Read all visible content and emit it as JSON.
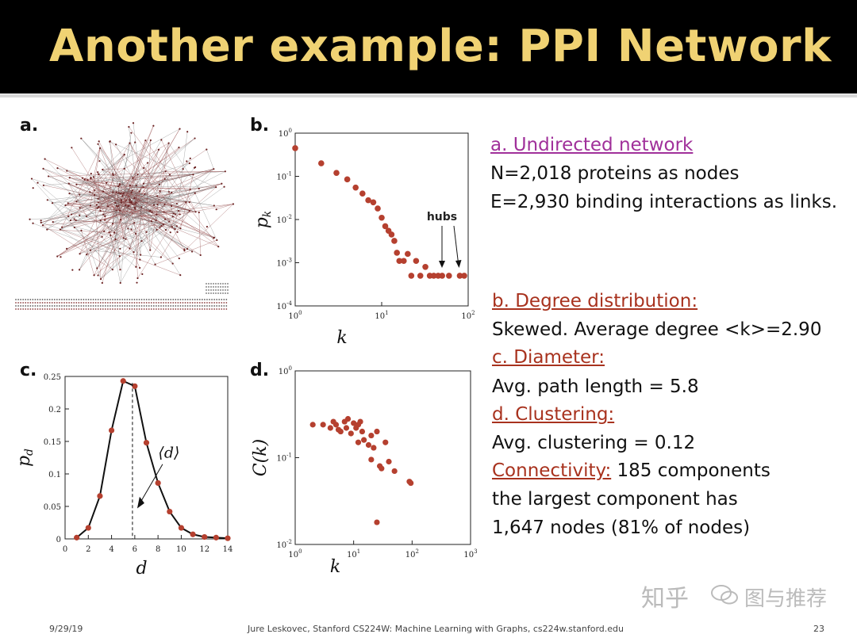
{
  "slide": {
    "title": "Another example: PPI Network",
    "footer_date": "9/29/19",
    "footer_credit": "Jure Leskovec, Stanford CS224W: Machine Learning with Graphs, cs224w.stanford.edu",
    "footer_page": "23",
    "watermark_left": "知乎",
    "watermark_right": "图与推荐"
  },
  "panels": {
    "a": {
      "letter": "a."
    },
    "b": {
      "letter": "b.",
      "annotation": "hubs"
    },
    "c": {
      "letter": "c."
    },
    "d": {
      "letter": "d."
    }
  },
  "text": {
    "a_header": "a. Undirected network",
    "a_line1": "N=2,018 proteins as nodes",
    "a_line2": "E=2,930 binding interactions as links.",
    "b_header": "b. Degree distribution:",
    "b_line1": "Skewed. Average degree  <k>=2.90",
    "c_header": "c. Diameter:",
    "c_line1": "Avg. path length = 5.8",
    "d_header": "d. Clustering:",
    "d_line1": "Avg. clustering = 0.12",
    "conn_header": "Connectivity:",
    "conn_line1": " 185 components",
    "conn_line2": " the largest component has",
    "conn_line3": "1,647 nodes (81% of nodes)"
  },
  "colors": {
    "accent_purple": "#a0309a",
    "accent_red": "#a8321e",
    "title_gold": "#f0d273",
    "marker": "#b5402f"
  },
  "chart_data": [
    {
      "id": "b",
      "type": "scatter",
      "xlabel": "k",
      "ylabel": "p_k",
      "xscale": "log",
      "yscale": "log",
      "xlim": [
        1,
        100
      ],
      "ylim": [
        0.0001,
        1
      ],
      "xticks": [
        "10^0",
        "10^1",
        "10^2"
      ],
      "yticks": [
        "10^-4",
        "10^-3",
        "10^-2",
        "10^-1",
        "10^0"
      ],
      "x": [
        1,
        2,
        3,
        4,
        5,
        6,
        7,
        8,
        9,
        10,
        11,
        12,
        13,
        14,
        15,
        16,
        18,
        20,
        22,
        25,
        28,
        32,
        36,
        40,
        45,
        50,
        60,
        80,
        90
      ],
      "y": [
        0.45,
        0.2,
        0.12,
        0.085,
        0.055,
        0.04,
        0.028,
        0.025,
        0.018,
        0.011,
        0.007,
        0.0055,
        0.0045,
        0.0032,
        0.0017,
        0.0011,
        0.0011,
        0.0016,
        0.0005,
        0.0011,
        0.0005,
        0.0008,
        0.0005,
        0.0005,
        0.0005,
        0.0005,
        0.0005,
        0.0005,
        0.0005
      ]
    },
    {
      "id": "c",
      "type": "line",
      "xlabel": "d",
      "ylabel": "p_d",
      "xlim": [
        0,
        14
      ],
      "ylim": [
        0,
        0.25
      ],
      "xticks": [
        0,
        2,
        4,
        6,
        8,
        10,
        12,
        14
      ],
      "yticks": [
        0,
        0.05,
        0.1,
        0.15,
        0.2,
        0.25
      ],
      "x": [
        1,
        2,
        3,
        4,
        5,
        6,
        7,
        8,
        9,
        10,
        11,
        12,
        13,
        14
      ],
      "values": [
        0.002,
        0.017,
        0.066,
        0.167,
        0.243,
        0.235,
        0.148,
        0.086,
        0.042,
        0.017,
        0.007,
        0.003,
        0.002,
        0.001
      ],
      "mean_marker": 5.8,
      "mean_label": "⟨d⟩"
    },
    {
      "id": "d",
      "type": "scatter",
      "xlabel": "k",
      "ylabel": "C(k)",
      "xscale": "log",
      "yscale": "log",
      "xlim": [
        1,
        1000
      ],
      "ylim": [
        0.01,
        1
      ],
      "xticks": [
        "10^0",
        "10^1",
        "10^2",
        "10^3"
      ],
      "yticks": [
        "10^-2",
        "10^-1",
        "10^0"
      ],
      "x": [
        2,
        3,
        4,
        4.5,
        5,
        5.5,
        6,
        7,
        7.5,
        8,
        9,
        10,
        11,
        12,
        13,
        14,
        12,
        15,
        18,
        20,
        22,
        25,
        20,
        28,
        30,
        35,
        40,
        50,
        90,
        95,
        25
      ],
      "y": [
        0.24,
        0.24,
        0.22,
        0.26,
        0.24,
        0.21,
        0.2,
        0.26,
        0.22,
        0.28,
        0.19,
        0.25,
        0.22,
        0.24,
        0.26,
        0.2,
        0.15,
        0.16,
        0.14,
        0.18,
        0.13,
        0.2,
        0.095,
        0.08,
        0.075,
        0.15,
        0.09,
        0.07,
        0.053,
        0.051,
        0.018
      ]
    }
  ]
}
